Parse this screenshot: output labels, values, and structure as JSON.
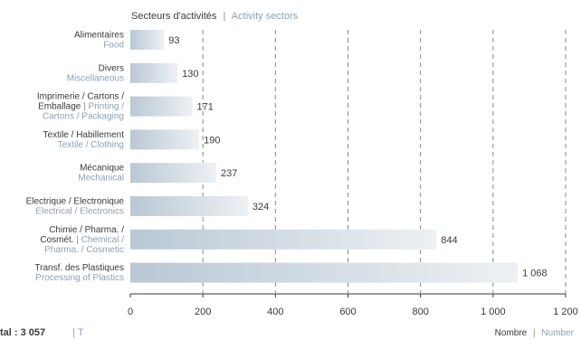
{
  "chart_data": {
    "type": "bar",
    "orientation": "horizontal",
    "title": {
      "primary": "Secteurs d'activités",
      "separator": "|",
      "secondary": "Activity sectors"
    },
    "xlabel": {
      "primary": "Nombre",
      "separator": "|",
      "secondary": "Number"
    },
    "ylabel": "",
    "xlim": [
      0,
      1200
    ],
    "xticks": [
      0,
      200,
      400,
      600,
      800,
      1000,
      1200
    ],
    "xtick_labels": [
      "0",
      "200",
      "400",
      "600",
      "800",
      "1 000",
      "1 200"
    ],
    "grid": "vertical dashed",
    "categories": [
      {
        "lines": [
          [
            {
              "t": "Alimentaires",
              "c": "dark"
            }
          ],
          [
            {
              "t": "Food",
              "c": "accent"
            }
          ]
        ]
      },
      {
        "lines": [
          [
            {
              "t": "Divers",
              "c": "dark"
            }
          ],
          [
            {
              "t": "Miscellaneous",
              "c": "accent"
            }
          ]
        ]
      },
      {
        "lines": [
          [
            {
              "t": "Imprimerie / Cartons /",
              "c": "dark"
            }
          ],
          [
            {
              "t": "Emballage ",
              "c": "dark"
            },
            {
              "t": "| ",
              "c": "sep"
            },
            {
              "t": "Printing /",
              "c": "accent"
            }
          ],
          [
            {
              "t": "Cartons / Packaging",
              "c": "accent"
            }
          ]
        ]
      },
      {
        "lines": [
          [
            {
              "t": "Textile / Habillement",
              "c": "dark"
            }
          ],
          [
            {
              "t": "Textile / Clothing",
              "c": "accent"
            }
          ]
        ]
      },
      {
        "lines": [
          [
            {
              "t": "Mécanique",
              "c": "dark"
            }
          ],
          [
            {
              "t": "Mechanical",
              "c": "accent"
            }
          ]
        ]
      },
      {
        "lines": [
          [
            {
              "t": "Electrique /  Electronique",
              "c": "dark"
            }
          ],
          [
            {
              "t": "Electrical / Electronics",
              "c": "accent"
            }
          ]
        ]
      },
      {
        "lines": [
          [
            {
              "t": "Chimie /  Pharma. /",
              "c": "dark"
            }
          ],
          [
            {
              "t": "Cosmét. ",
              "c": "dark"
            },
            {
              "t": "| ",
              "c": "sep"
            },
            {
              "t": "Chemical /",
              "c": "accent"
            }
          ],
          [
            {
              "t": "Pharma. / Cosmetic",
              "c": "accent"
            }
          ]
        ]
      },
      {
        "lines": [
          [
            {
              "t": "Transf. des Plastiques",
              "c": "dark"
            }
          ],
          [
            {
              "t": "Processing of Plastics",
              "c": "accent"
            }
          ]
        ]
      }
    ],
    "values": [
      93,
      130,
      171,
      190,
      237,
      324,
      844,
      1068
    ],
    "value_labels": [
      "93",
      "130",
      "171",
      "190",
      "237",
      "324",
      "844",
      "1 068"
    ],
    "colors": {
      "bar_left": "#b9c8d4",
      "bar_right": "#edf1f4",
      "grid": "#8a8a8a",
      "text": "#3a3a3a",
      "accent": "#8aa2b6"
    },
    "footer_fragment": [
      {
        "t": "tal : 3 057",
        "c": "dark"
      },
      {
        "t": "| T",
        "c": "accent"
      }
    ]
  }
}
